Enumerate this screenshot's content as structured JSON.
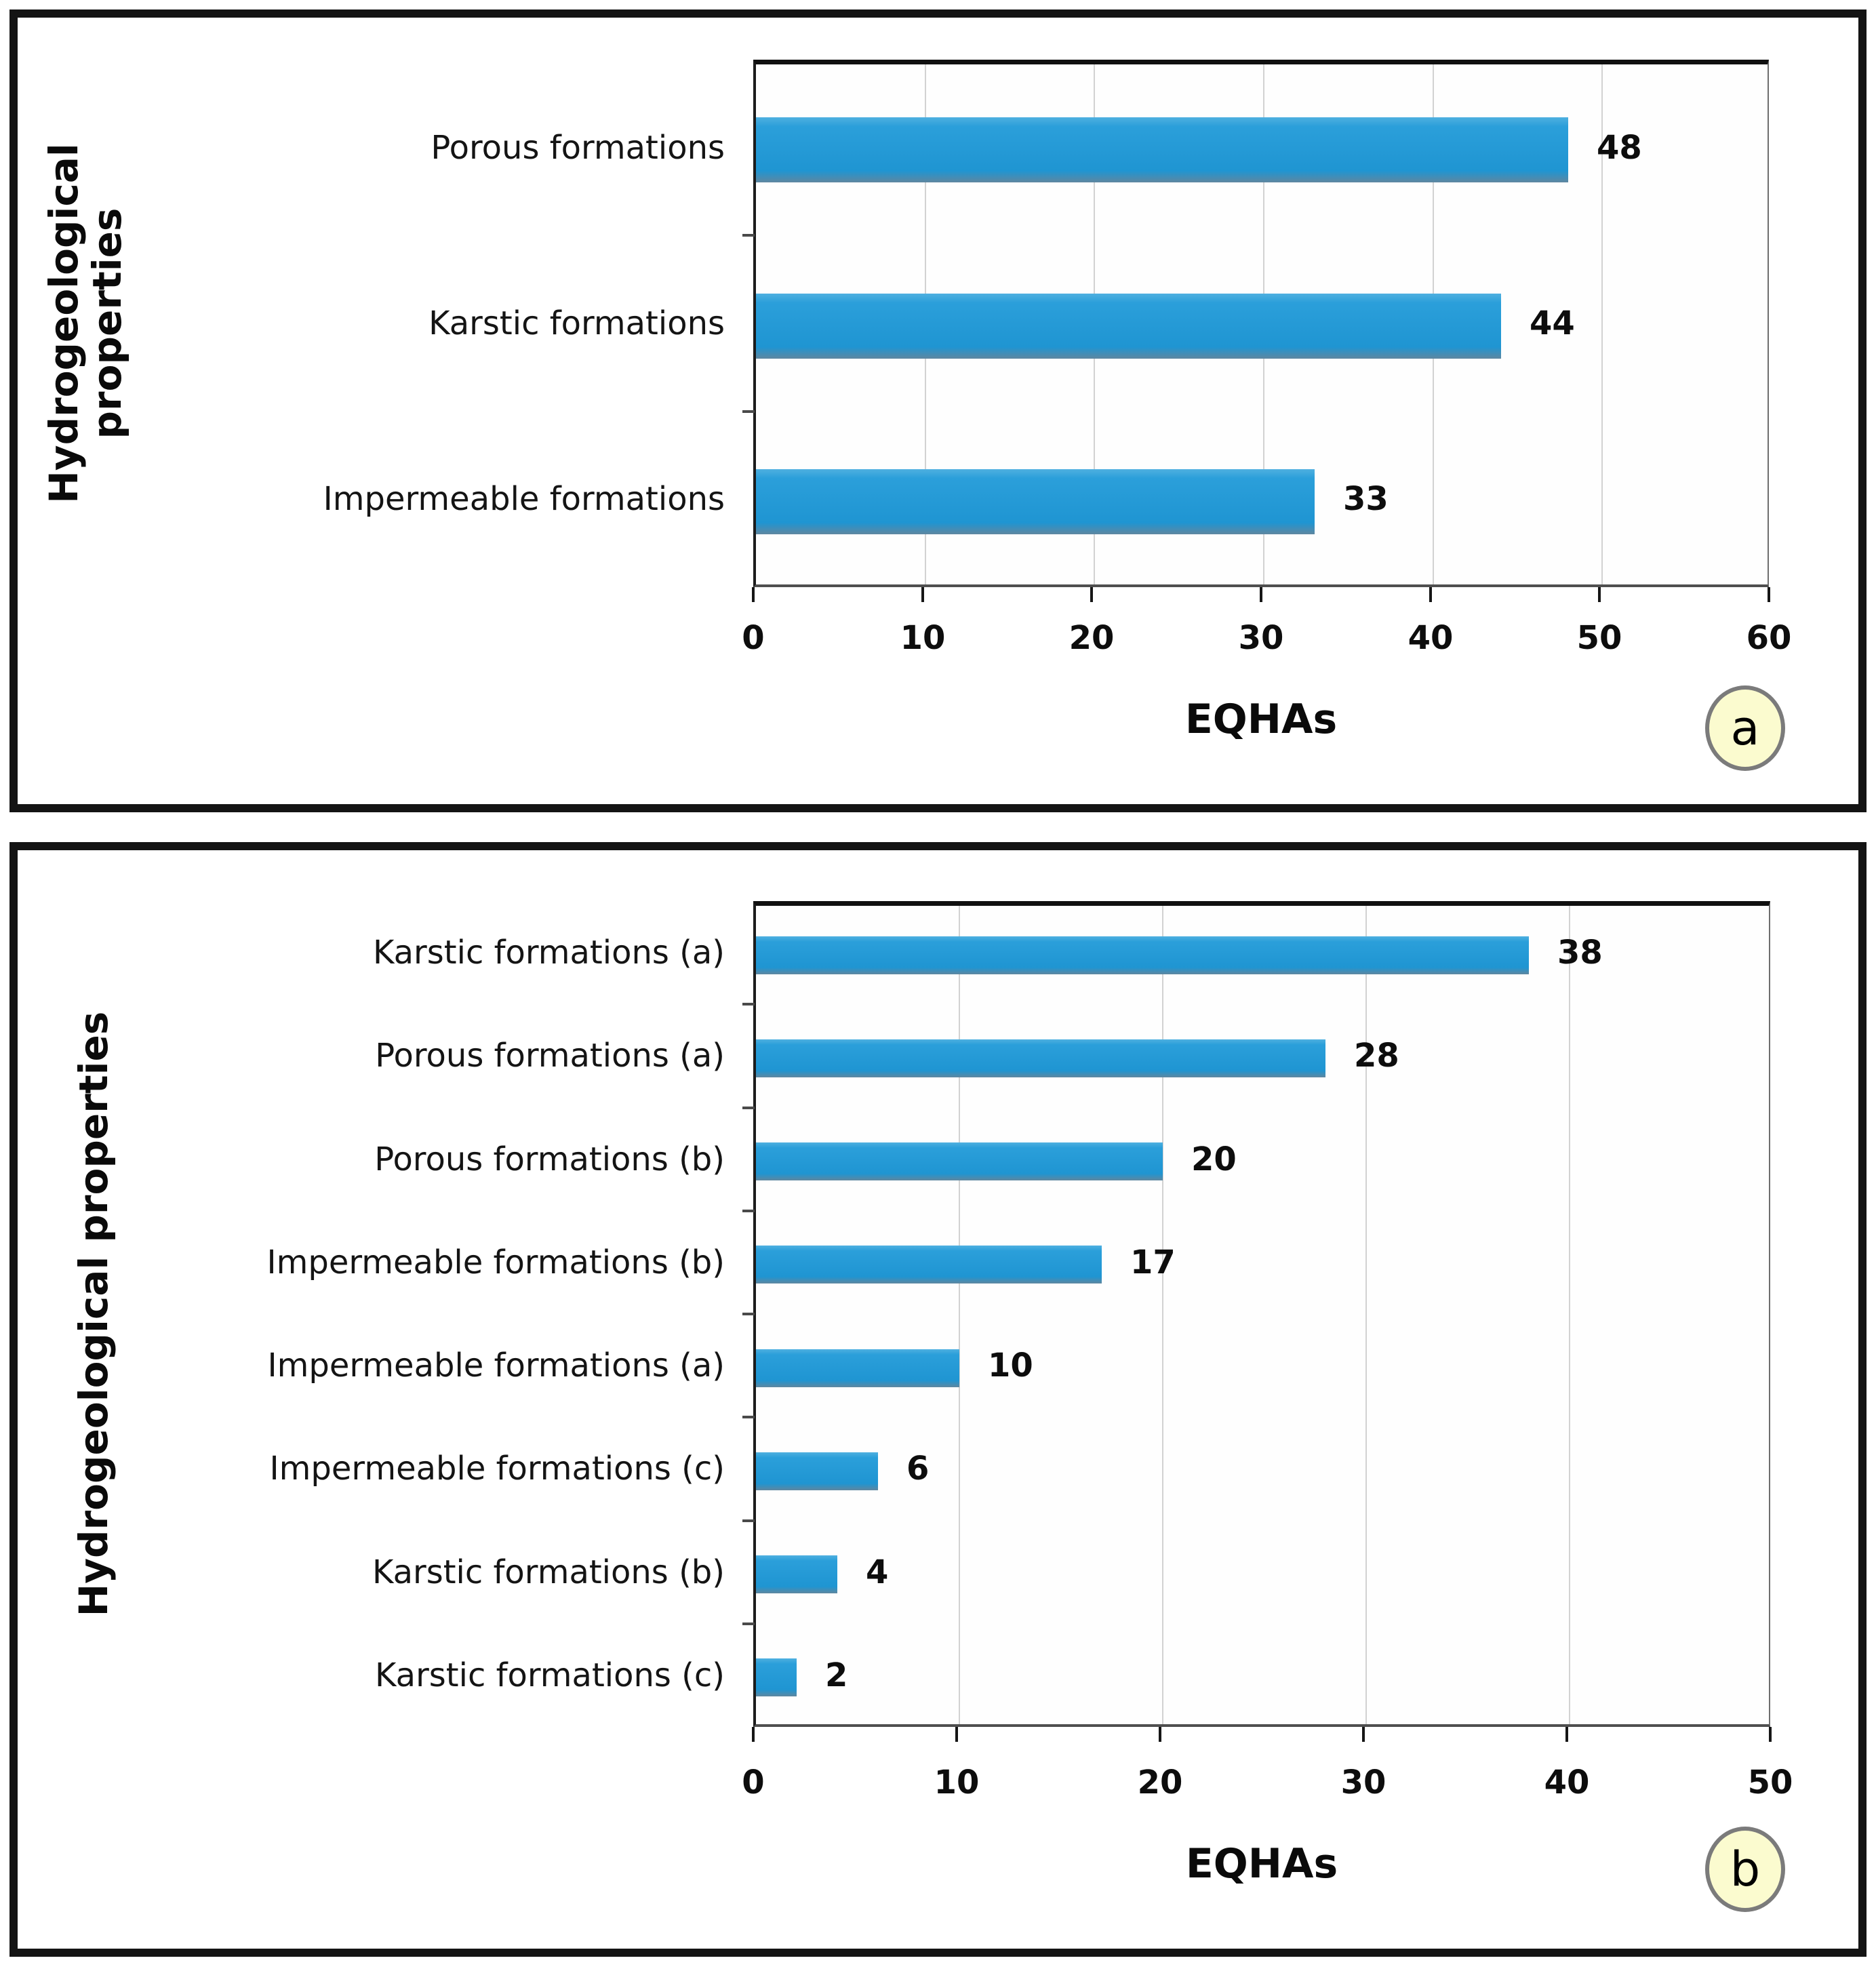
{
  "chart_data": [
    {
      "type": "bar",
      "orientation": "horizontal",
      "panel_label": "a",
      "categories": [
        "Porous formations",
        "Karstic formations",
        "Impermeable formations"
      ],
      "values": [
        48,
        44,
        33
      ],
      "value_labels": [
        "48",
        "44",
        "33"
      ],
      "xlabel": "EQHAs",
      "ylabel": "Hydrogeological properties",
      "ylabel_lines": [
        "Hydrogeological",
        "properties"
      ],
      "xlim": [
        0,
        60
      ],
      "xticks": [
        0,
        10,
        20,
        30,
        40,
        50,
        60
      ],
      "grid": true,
      "legend": "none",
      "bar_color": "#2097d5"
    },
    {
      "type": "bar",
      "orientation": "horizontal",
      "panel_label": "b",
      "categories": [
        "Karstic formations (a)",
        "Porous formations (a)",
        "Porous formations (b)",
        "Impermeable formations (b)",
        "Impermeable formations (a)",
        "Impermeable formations (c)",
        "Karstic formations (b)",
        "Karstic formations (c)"
      ],
      "values": [
        38,
        28,
        20,
        17,
        10,
        6,
        4,
        2
      ],
      "value_labels": [
        "38",
        "28",
        "20",
        "17",
        "10",
        "6",
        "4",
        "2"
      ],
      "xlabel": "EQHAs",
      "ylabel": "Hydrogeological properties",
      "ylabel_lines": [
        "Hydrogeological properties"
      ],
      "xlim": [
        0,
        50
      ],
      "xticks": [
        0,
        10,
        20,
        30,
        40,
        50
      ],
      "grid": true,
      "legend": "none",
      "bar_color": "#2097d5"
    }
  ],
  "colors": {
    "bar": "#2097d5",
    "gridline": "#d2d2d2",
    "panel_border": "#141414",
    "badge_fill": "#fbfbcf",
    "badge_border": "#7b7b7b",
    "text": "#0d0d0d"
  }
}
